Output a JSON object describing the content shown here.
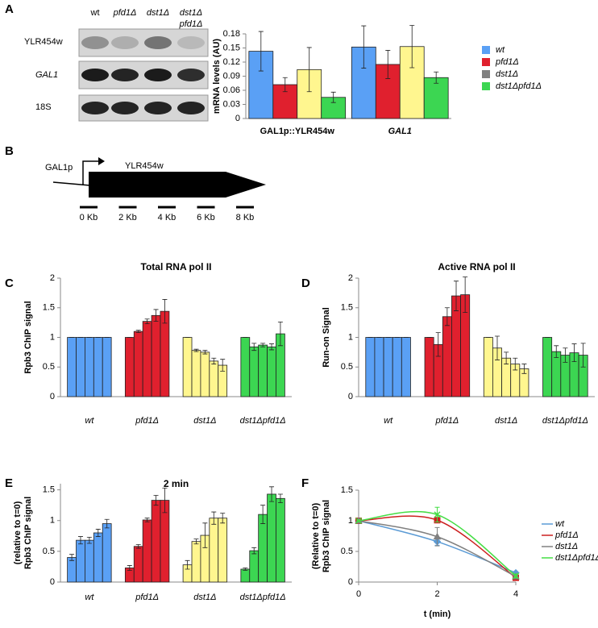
{
  "panel_labels": [
    "A",
    "B",
    "C",
    "D",
    "E",
    "F"
  ],
  "blot": {
    "lanes": [
      "wt",
      "pfd1Δ",
      "dst1Δ",
      [
        "dst1Δ",
        "pfd1Δ"
      ]
    ],
    "rows": [
      "YLR454w",
      "GAL1",
      "18S"
    ]
  },
  "diagram": {
    "promoter": "GAL1p",
    "gene": "YLR454w",
    "scale": [
      "0 Kb",
      "2 Kb",
      "4 Kb",
      "6 Kb",
      "8 Kb"
    ]
  },
  "chart_data": [
    {
      "type": "bar",
      "ylabel": [
        "mRNA levels (AU)"
      ],
      "categories": [
        "GAL1p::YLR454w",
        "GAL1"
      ],
      "series": [
        {
          "name": "wt",
          "color": "#5aa0f5",
          "legend_color": "#5aa0f5",
          "values": [
            0.143,
            0.152
          ],
          "errors": [
            0.042,
            0.045
          ]
        },
        {
          "name": "pfd1Δ",
          "color": "#e0202e",
          "legend_color": "#e0202e",
          "values": [
            0.072,
            0.115
          ],
          "errors": [
            0.015,
            0.03
          ]
        },
        {
          "name": "dst1Δ",
          "color": "#fff68f",
          "legend_color": "#808080",
          "values": [
            0.104,
            0.153
          ],
          "errors": [
            0.047,
            0.045
          ]
        },
        {
          "name": "dst1Δpfd1Δ",
          "color": "#3cd652",
          "legend_color": "#3cd652",
          "values": [
            0.045,
            0.087
          ],
          "errors": [
            0.011,
            0.012
          ]
        }
      ],
      "ylim": [
        0,
        0.18
      ],
      "yticks": [
        0,
        0.03,
        0.06,
        0.09,
        0.12,
        0.15,
        0.18
      ]
    },
    {
      "type": "bar",
      "title": "Total RNA pol II",
      "ylabel": [
        "Rpb3 ChIP signal"
      ],
      "series": [
        {
          "name": "wt",
          "color": "#5aa0f5",
          "values": [
            1,
            1,
            1,
            1,
            1
          ],
          "errors": [
            0,
            0,
            0,
            0,
            0
          ]
        },
        {
          "name": "pfd1Δ",
          "color": "#e0202e",
          "values": [
            1,
            1.1,
            1.27,
            1.37,
            1.44
          ],
          "errors": [
            0,
            0.02,
            0.04,
            0.1,
            0.2
          ]
        },
        {
          "name": "dst1Δ",
          "color": "#fff68f",
          "values": [
            1,
            0.78,
            0.75,
            0.6,
            0.53
          ],
          "errors": [
            0,
            0.02,
            0.03,
            0.05,
            0.1
          ]
        },
        {
          "name": "dst1Δpfd1Δ",
          "color": "#3cd652",
          "values": [
            1,
            0.84,
            0.87,
            0.84,
            1.06
          ],
          "errors": [
            0,
            0.06,
            0.03,
            0.05,
            0.2
          ]
        }
      ],
      "ylim": [
        0,
        2
      ],
      "yticks": [
        0,
        0.5,
        1,
        1.5,
        2
      ]
    },
    {
      "type": "bar",
      "title": "Active RNA pol II",
      "ylabel": [
        "Run-on Signal"
      ],
      "series": [
        {
          "name": "wt",
          "color": "#5aa0f5",
          "values": [
            1,
            1,
            1,
            1,
            1
          ],
          "errors": [
            0,
            0,
            0,
            0,
            0
          ]
        },
        {
          "name": "pfd1Δ",
          "color": "#e0202e",
          "values": [
            1,
            0.88,
            1.35,
            1.7,
            1.72
          ],
          "errors": [
            0,
            0.2,
            0.15,
            0.25,
            0.3
          ]
        },
        {
          "name": "dst1Δ",
          "color": "#fff68f",
          "values": [
            1,
            0.82,
            0.65,
            0.55,
            0.47
          ],
          "errors": [
            0,
            0.2,
            0.1,
            0.1,
            0.08
          ]
        },
        {
          "name": "dst1Δpfd1Δ",
          "color": "#3cd652",
          "values": [
            1,
            0.76,
            0.7,
            0.74,
            0.7
          ],
          "errors": [
            0,
            0.1,
            0.12,
            0.15,
            0.2
          ]
        }
      ],
      "ylim": [
        0,
        2
      ],
      "yticks": [
        0,
        0.5,
        1,
        1.5,
        2
      ]
    },
    {
      "type": "bar",
      "title": "2 min",
      "ylabel": [
        "Rpb3 ChIP signal",
        "(relative to t=0)"
      ],
      "series": [
        {
          "name": "wt",
          "color": "#5aa0f5",
          "values": [
            0.4,
            0.68,
            0.68,
            0.8,
            0.95
          ],
          "errors": [
            0.05,
            0.06,
            0.05,
            0.06,
            0.07
          ]
        },
        {
          "name": "pfd1Δ",
          "color": "#e0202e",
          "values": [
            0.23,
            0.58,
            1.01,
            1.33,
            1.33
          ],
          "errors": [
            0.04,
            0.03,
            0.03,
            0.08,
            0.2
          ]
        },
        {
          "name": "dst1Δ",
          "color": "#fff68f",
          "values": [
            0.28,
            0.66,
            0.76,
            1.04,
            1.04
          ],
          "errors": [
            0.07,
            0.04,
            0.2,
            0.1,
            0.08
          ]
        },
        {
          "name": "dst1Δpfd1Δ",
          "color": "#3cd652",
          "values": [
            0.21,
            0.51,
            1.1,
            1.43,
            1.36
          ],
          "errors": [
            0.02,
            0.05,
            0.15,
            0.12,
            0.07
          ]
        }
      ],
      "ylim": [
        0,
        1.6
      ],
      "yticks": [
        0,
        0.5,
        1,
        1.5
      ]
    },
    {
      "type": "line",
      "ylabel": [
        "Rpb3 ChIP signal",
        "(Relative to t=0)"
      ],
      "xlabel": "t (min)",
      "x": [
        0,
        2,
        4
      ],
      "series": [
        {
          "name": "wt",
          "color": "#5b9bd5",
          "marker": "diamond",
          "values": [
            1,
            0.66,
            0.15
          ],
          "errors": [
            0,
            0.06,
            0.02
          ]
        },
        {
          "name": "pfd1Δ",
          "color": "#cc2020",
          "marker": "square",
          "values": [
            1,
            1.01,
            0.07
          ],
          "errors": [
            0,
            0.04,
            0.02
          ]
        },
        {
          "name": "dst1Δ",
          "color": "#808080",
          "marker": "triangle",
          "values": [
            1,
            0.74,
            0.09
          ],
          "errors": [
            0,
            0.15,
            0.02
          ]
        },
        {
          "name": "dst1Δpfd1Δ",
          "color": "#44dd44",
          "marker": "x",
          "values": [
            1,
            1.1,
            0.1
          ],
          "errors": [
            0,
            0.12,
            0.03
          ]
        }
      ],
      "xlim": [
        0,
        4
      ],
      "xticks": [
        0,
        2,
        4
      ],
      "ylim": [
        0,
        1.5
      ],
      "yticks": [
        0,
        0.5,
        1,
        1.5
      ]
    }
  ]
}
